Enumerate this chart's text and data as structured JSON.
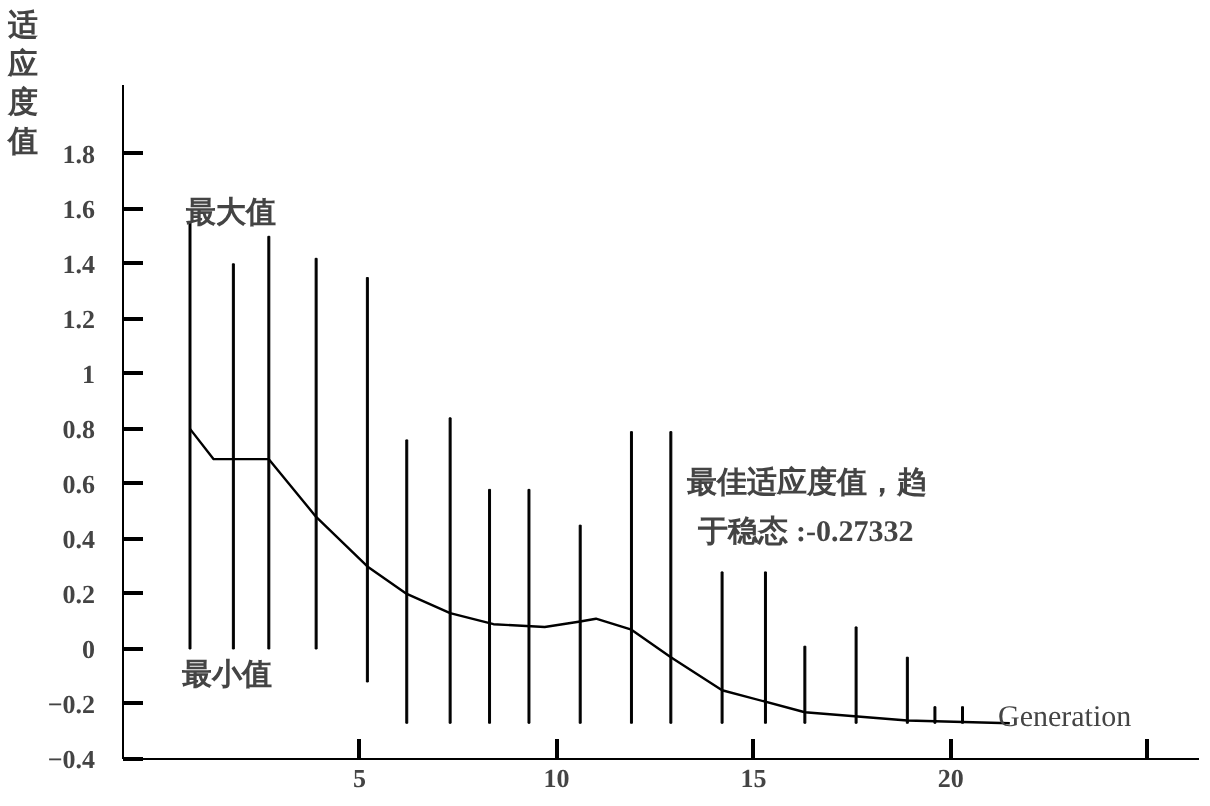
{
  "chart_data": {
    "type": "bar",
    "ylabel": "适应度值",
    "xlabel": "Generation",
    "annotations": [
      "最大值",
      "最小值",
      "最佳适应度值，趋",
      "于稳态 :-0.27332"
    ],
    "xlim": [
      -1,
      26.3
    ],
    "ylim": [
      -0.4,
      2.05
    ],
    "xticks": [
      5,
      10,
      15,
      20,
      {
        "value": 25,
        "label": null
      }
    ],
    "yticks": [
      -0.4,
      -0.2,
      0,
      0.2,
      0.4,
      0.6,
      0.8,
      1,
      1.2,
      1.4,
      1.6,
      1.8
    ],
    "grid": false,
    "series": [
      {
        "color": "#000000",
        "x": [
          0.7,
          1.8,
          2.7,
          3.9,
          5.2,
          6.2,
          7.3,
          8.3,
          9.3,
          10.6,
          11.9,
          12.9,
          14.2,
          15.3,
          16.3,
          17.6,
          18.9,
          19.6,
          20.3
        ],
        "base": [
          0,
          0,
          0,
          0,
          -0.12,
          -0.27,
          -0.27,
          -0.27,
          -0.27,
          -0.27,
          -0.27,
          -0.27,
          -0.27,
          -0.27,
          -0.27,
          -0.27,
          -0.27,
          -0.27,
          -0.27
        ],
        "values": [
          1.55,
          1.4,
          1.5,
          1.42,
          1.47,
          1.03,
          1.11,
          0.85,
          0.85,
          0.72,
          1.06,
          1.06,
          0.55,
          0.55,
          0.28,
          0.35,
          0.24,
          0.06,
          0.06
        ]
      },
      {
        "type": "line",
        "color": "#000000",
        "x": [
          0.7,
          1.3,
          2.7,
          3.9,
          5.2,
          6.2,
          7.3,
          8.4,
          9.7,
          10.6,
          11.0,
          11.9,
          12.9,
          14.2,
          16.3,
          18.9,
          21.5
        ],
        "values": [
          0.8,
          0.69,
          0.69,
          0.48,
          0.3,
          0.2,
          0.13,
          0.09,
          0.08,
          0.1,
          0.11,
          0.07,
          -0.03,
          -0.15,
          -0.23,
          -0.26,
          -0.27
        ]
      }
    ]
  }
}
